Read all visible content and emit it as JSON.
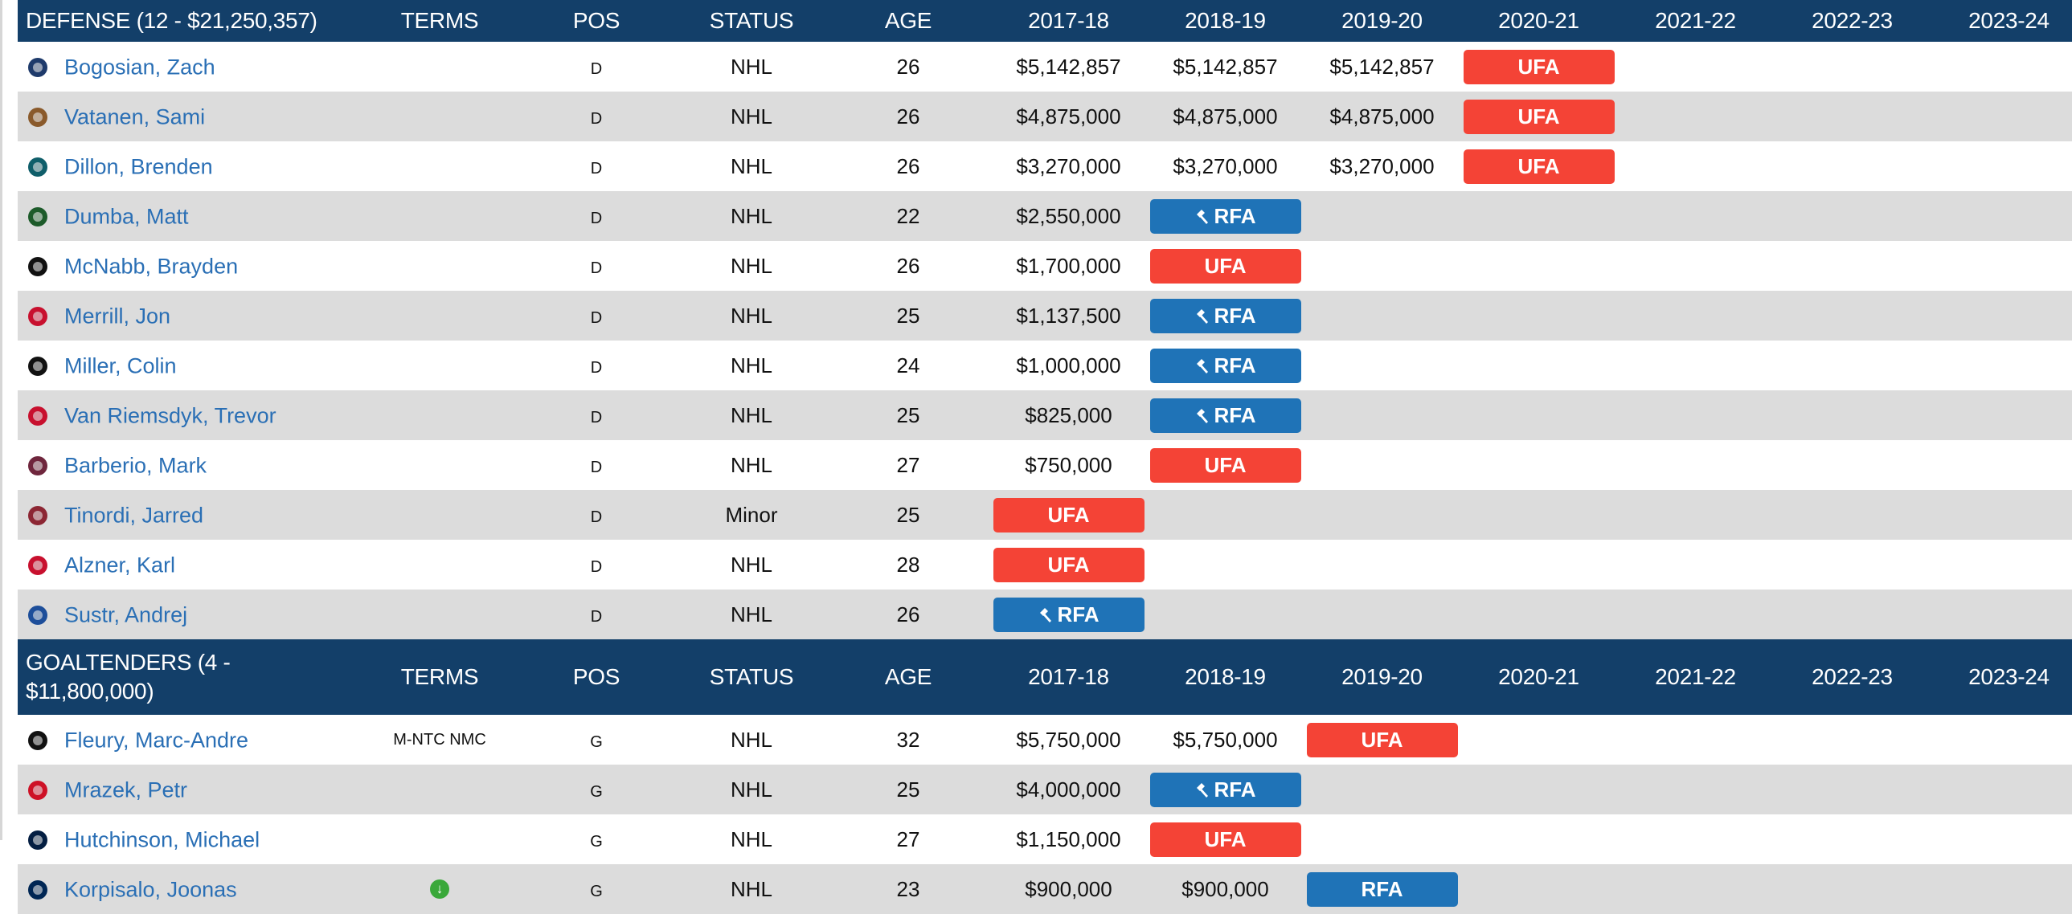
{
  "colors": {
    "header_bg": "#133f69",
    "link": "#2a6fb5",
    "ufa": "#f44336",
    "rfa": "#1f73b7",
    "alt_row": "#dcdcdc",
    "terms_icon": "#3aa83a"
  },
  "columns": [
    "TERMS",
    "POS",
    "STATUS",
    "AGE",
    "2017-18",
    "2018-19",
    "2019-20",
    "2020-21",
    "2021-22",
    "2022-23",
    "2023-24"
  ],
  "sections": [
    {
      "title": "DEFENSE (12 - $21,250,357)",
      "players": [
        {
          "name": "Bogosian, Zach",
          "team_icon": "sabres-logo-icon",
          "terms": "",
          "pos": "D",
          "status": "NHL",
          "age": "26",
          "years": [
            "$5,142,857",
            "$5,142,857",
            "$5,142,857",
            "UFA",
            "",
            "",
            ""
          ]
        },
        {
          "name": "Vatanen, Sami",
          "team_icon": "ducks-logo-icon",
          "terms": "",
          "pos": "D",
          "status": "NHL",
          "age": "26",
          "years": [
            "$4,875,000",
            "$4,875,000",
            "$4,875,000",
            "UFA",
            "",
            "",
            ""
          ]
        },
        {
          "name": "Dillon, Brenden",
          "team_icon": "sharks-logo-icon",
          "terms": "",
          "pos": "D",
          "status": "NHL",
          "age": "26",
          "years": [
            "$3,270,000",
            "$3,270,000",
            "$3,270,000",
            "UFA",
            "",
            "",
            ""
          ]
        },
        {
          "name": "Dumba, Matt",
          "team_icon": "wild-logo-icon",
          "terms": "",
          "pos": "D",
          "status": "NHL",
          "age": "22",
          "years": [
            "$2,550,000",
            "RFA*",
            "",
            "",
            "",
            "",
            ""
          ]
        },
        {
          "name": "McNabb, Brayden",
          "team_icon": "kings-logo-icon",
          "terms": "",
          "pos": "D",
          "status": "NHL",
          "age": "26",
          "years": [
            "$1,700,000",
            "UFA",
            "",
            "",
            "",
            "",
            ""
          ]
        },
        {
          "name": "Merrill, Jon",
          "team_icon": "devils-logo-icon",
          "terms": "",
          "pos": "D",
          "status": "NHL",
          "age": "25",
          "years": [
            "$1,137,500",
            "RFA*",
            "",
            "",
            "",
            "",
            ""
          ]
        },
        {
          "name": "Miller, Colin",
          "team_icon": "bruins-logo-icon",
          "terms": "",
          "pos": "D",
          "status": "NHL",
          "age": "24",
          "years": [
            "$1,000,000",
            "RFA*",
            "",
            "",
            "",
            "",
            ""
          ]
        },
        {
          "name": "Van Riemsdyk, Trevor",
          "team_icon": "blackhawks-logo-icon",
          "terms": "",
          "pos": "D",
          "status": "NHL",
          "age": "25",
          "years": [
            "$825,000",
            "RFA*",
            "",
            "",
            "",
            "",
            ""
          ]
        },
        {
          "name": "Barberio, Mark",
          "team_icon": "avalanche-logo-icon",
          "terms": "",
          "pos": "D",
          "status": "NHL",
          "age": "27",
          "years": [
            "$750,000",
            "UFA",
            "",
            "",
            "",
            "",
            ""
          ]
        },
        {
          "name": "Tinordi, Jarred",
          "team_icon": "coyotes-logo-icon",
          "terms": "",
          "pos": "D",
          "status": "Minor",
          "age": "25",
          "years": [
            "UFA",
            "",
            "",
            "",
            "",
            "",
            ""
          ]
        },
        {
          "name": "Alzner, Karl",
          "team_icon": "capitals-logo-icon",
          "terms": "",
          "pos": "D",
          "status": "NHL",
          "age": "28",
          "years": [
            "UFA",
            "",
            "",
            "",
            "",
            "",
            ""
          ]
        },
        {
          "name": "Sustr, Andrej",
          "team_icon": "lightning-logo-icon",
          "terms": "",
          "pos": "D",
          "status": "NHL",
          "age": "26",
          "years": [
            "RFA*",
            "",
            "",
            "",
            "",
            "",
            ""
          ]
        }
      ]
    },
    {
      "title": "GOALTENDERS (4 - $11,800,000)",
      "players": [
        {
          "name": "Fleury, Marc-Andre",
          "team_icon": "penguins-logo-icon",
          "terms": "M-NTC NMC",
          "pos": "G",
          "status": "NHL",
          "age": "32",
          "years": [
            "$5,750,000",
            "$5,750,000",
            "UFA",
            "",
            "",
            "",
            ""
          ]
        },
        {
          "name": "Mrazek, Petr",
          "team_icon": "red-wings-logo-icon",
          "terms": "",
          "pos": "G",
          "status": "NHL",
          "age": "25",
          "years": [
            "$4,000,000",
            "RFA*",
            "",
            "",
            "",
            "",
            ""
          ]
        },
        {
          "name": "Hutchinson, Michael",
          "team_icon": "jets-logo-icon",
          "terms": "",
          "pos": "G",
          "status": "NHL",
          "age": "27",
          "years": [
            "$1,150,000",
            "UFA",
            "",
            "",
            "",
            "",
            ""
          ]
        },
        {
          "name": "Korpisalo, Joonas",
          "team_icon": "blue-jackets-logo-icon",
          "terms": "ICON:down-arrow",
          "pos": "G",
          "status": "NHL",
          "age": "23",
          "years": [
            "$900,000",
            "$900,000",
            "RFA",
            "",
            "",
            "",
            ""
          ]
        }
      ]
    }
  ],
  "badge_labels": {
    "ufa": "UFA",
    "rfa": "RFA"
  }
}
